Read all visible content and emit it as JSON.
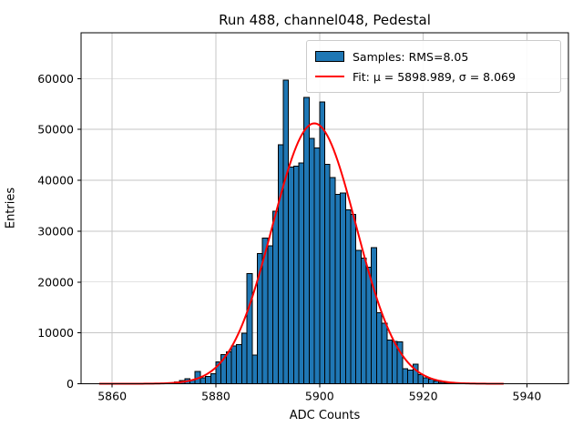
{
  "title": "Run 488, channel048, Pedestal",
  "chart_data": {
    "type": "bar",
    "subtype": "histogram-with-gaussian-fit",
    "title": "Run 488, channel048, Pedestal",
    "xlabel": "ADC Counts",
    "ylabel": "Entries",
    "xlim": [
      5854,
      5948
    ],
    "ylim": [
      0,
      69000
    ],
    "xticks": [
      5860,
      5880,
      5900,
      5920,
      5940
    ],
    "yticks": [
      0,
      10000,
      20000,
      30000,
      40000,
      50000,
      60000
    ],
    "grid": true,
    "legend_position": "upper right",
    "histogram": {
      "label": "Samples: RMS=8.05",
      "rms": 8.05,
      "bin_start": 5871,
      "bin_width": 1.0,
      "counts": [
        200,
        350,
        600,
        1000,
        750,
        2400,
        1150,
        1450,
        1950,
        4300,
        5750,
        6250,
        7400,
        7700,
        9900,
        21700,
        5600,
        25600,
        28600,
        27100,
        33900,
        47000,
        59700,
        42600,
        42800,
        43400,
        56300,
        48200,
        46400,
        55400,
        43100,
        40500,
        37200,
        37500,
        34200,
        33300,
        26200,
        24700,
        22900,
        26800,
        14000,
        11900,
        8600,
        8300,
        8200,
        2950,
        2650,
        3840,
        1760,
        1160,
        860,
        570,
        270,
        200
      ],
      "fill_color": "#1f77b4",
      "edge_color": "#000000"
    },
    "fit": {
      "label": "Fit: μ = 5898.989, σ = 8.069",
      "mu": 5898.989,
      "sigma": 8.069,
      "amplitude": 51200,
      "x_range": [
        5857.5,
        5935.7
      ],
      "color": "#ff0000"
    },
    "grid_color": "#c6c6c6",
    "axis_color": "#000000"
  }
}
